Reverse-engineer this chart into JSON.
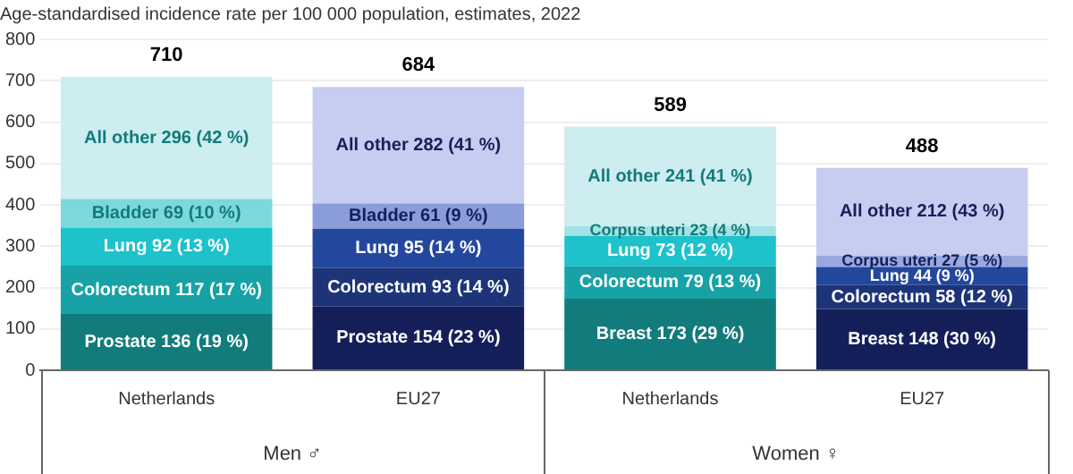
{
  "chart_data": {
    "type": "bar",
    "stacked": true,
    "title": "Age-standardised incidence rate per 100 000 population, estimates, 2022",
    "categories": [
      "Netherlands",
      "EU27",
      "Netherlands",
      "EU27"
    ],
    "series": [
      {
        "colors": [
          "#127b7b",
          "#141f5a",
          "#127b7b",
          "#141f5a"
        ],
        "values": [
          136,
          154,
          173,
          148
        ],
        "value_labels": [
          "Prostate 136 (19 %)",
          "Prostate 154 (23 %)",
          "Breast 173 (29 %)",
          "Breast 148 (30 %)"
        ]
      },
      {
        "colors": [
          "#17a2a5",
          "#1d3479",
          "#17a2a5",
          "#1d3479"
        ],
        "values": [
          117,
          93,
          79,
          58
        ],
        "value_labels": [
          "Colorectum 117 (17 %)",
          "Colorectum 93 (14 %)",
          "Colorectum 79 (13 %)",
          "Colorectum 58 (12 %)"
        ]
      },
      {
        "colors": [
          "#1ec2cb",
          "#24479e",
          "#1ec2cb",
          "#24479e"
        ],
        "values": [
          92,
          95,
          73,
          44
        ],
        "value_labels": [
          "Lung 92 (13 %)",
          "Lung 95 (14 %)",
          "Lung 73 (12 %)",
          "Lung 44 (9 %)"
        ]
      },
      {
        "colors": [
          "#7dd8dc",
          "#8a9cda",
          "#a3e2e5",
          "#9aa8e0"
        ],
        "values": [
          69,
          61,
          23,
          27
        ],
        "value_labels": [
          "Bladder 69 (10 %)",
          "Bladder 61 (9 %)",
          "Corpus uteri 23 (4 %)",
          "Corpus uteri 27 (5 %)"
        ]
      },
      {
        "colors": [
          "#cdedf0",
          "#c6cdf0",
          "#cdedf0",
          "#c6cdf0"
        ],
        "values": [
          296,
          282,
          241,
          212
        ],
        "value_labels": [
          "All other 296 (42 %)",
          "All other 282 (41 %)",
          "All other 241 (41 %)",
          "All other 212 (43 %)"
        ]
      }
    ],
    "totals": [
      "710",
      "684",
      "589",
      "488"
    ],
    "annotations": [
      "Men ♂",
      "Women ♀"
    ],
    "ylim": [
      0,
      800
    ],
    "yticks": [
      0,
      100,
      200,
      300,
      400,
      500,
      600,
      700,
      800
    ],
    "grid": "y",
    "legend": false
  }
}
